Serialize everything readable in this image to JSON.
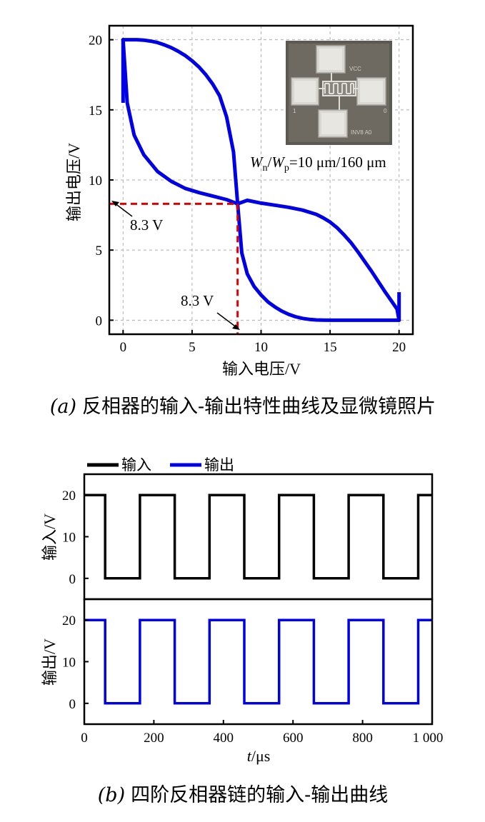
{
  "chart_data": [
    {
      "panel": "a",
      "type": "line",
      "caption_label": "(a)",
      "caption": "反相器的输入-输出特性曲线及显微镜照片",
      "xlabel": "输入电压/V",
      "ylabel": "输出电压/V",
      "xlim": [
        -1,
        21
      ],
      "ylim": [
        -1,
        21
      ],
      "xticks": [
        0,
        5,
        10,
        15,
        20
      ],
      "yticks": [
        0,
        5,
        10,
        15,
        20
      ],
      "grid": true,
      "series": [
        {
          "color": "#0000e6",
          "x": [
            0,
            0.5,
            1,
            1.5,
            2,
            2.5,
            3,
            3.5,
            4,
            4.5,
            5,
            5.5,
            6,
            6.5,
            7,
            7.5,
            8,
            8.3,
            8.6,
            9,
            9.5,
            10,
            10.5,
            11,
            11.5,
            12,
            12.5,
            13,
            13.5,
            14,
            14.5,
            15,
            15.5,
            16,
            16.5,
            17,
            17.5,
            18,
            18.5,
            19,
            19.5,
            20
          ],
          "y": [
            20,
            20,
            20,
            19.97,
            19.9,
            19.8,
            19.63,
            19.43,
            19.17,
            18.87,
            18.5,
            18.05,
            17.5,
            16.83,
            16.0,
            14.5,
            12.0,
            8.3,
            4.8,
            3.3,
            2.4,
            1.8,
            1.3,
            0.95,
            0.65,
            0.42,
            0.25,
            0.13,
            0.06,
            0.02,
            0.01,
            0,
            0,
            0,
            0,
            0,
            0,
            0,
            0,
            0,
            0,
            0
          ]
        },
        {
          "color": "#0000e6",
          "x": [
            0,
            0.3,
            0.8,
            1.5,
            2.5,
            3.5,
            4.5,
            5.5,
            6.5,
            7.5,
            8.3,
            9,
            10,
            11,
            12,
            13,
            14,
            14.5,
            15,
            15.5,
            16,
            16.5,
            17,
            17.5,
            18,
            18.5,
            19,
            19.5,
            19.85,
            20
          ],
          "y": [
            20,
            15.5,
            13.2,
            11.8,
            10.6,
            9.9,
            9.4,
            9.1,
            8.85,
            8.6,
            8.3,
            8.55,
            8.35,
            8.2,
            8.05,
            7.85,
            7.55,
            7.3,
            7.0,
            6.6,
            6.1,
            5.55,
            4.9,
            4.2,
            3.5,
            2.75,
            2.0,
            1.3,
            0.8,
            0
          ]
        }
      ],
      "closing_edges": "x=0 from 15.5 to 20 and x=20 from 0 to 2",
      "reference_lines": {
        "color": "#dd0000",
        "x": 8.3,
        "y": 8.3
      },
      "annotations": [
        {
          "text": "8.3 V",
          "points_to": [
            -1,
            8.3
          ]
        },
        {
          "text": "8.3 V",
          "points_to": [
            8.3,
            -1
          ]
        }
      ],
      "inset": {
        "pad_labels": [
          "VCC",
          "1",
          "0",
          "INV8 A0"
        ],
        "ratio_text": {
          "Wn": "W",
          "n": "n",
          "slash": "/",
          "Wp": "W",
          "p": "p",
          "rest": "=10 μm/160 μm"
        }
      }
    },
    {
      "panel": "b",
      "type": "line",
      "caption_label": "(b)",
      "caption": "四阶反相器链的输入-输出曲线",
      "xlabel_italic": "t",
      "xlabel_rest": "/μs",
      "xlim": [
        0,
        1000
      ],
      "xticks": [
        0,
        200,
        400,
        600,
        800,
        1000
      ],
      "xtick_labels": [
        "0",
        "200",
        "400",
        "600",
        "800",
        "1 000"
      ],
      "legend": [
        {
          "name": "输入",
          "color": "#000000"
        },
        {
          "name": "输出",
          "color": "#0000e6"
        }
      ],
      "subplots": [
        {
          "ylabel": "输入/V",
          "ylim": [
            -5,
            25
          ],
          "yticks": [
            0,
            10,
            20
          ],
          "color": "#000000",
          "high": 20,
          "low": 0,
          "x": [
            0,
            60,
            60,
            160,
            160,
            260,
            260,
            360,
            360,
            460,
            460,
            560,
            560,
            660,
            660,
            760,
            760,
            860,
            860,
            960,
            960,
            1000
          ],
          "y": [
            20,
            20,
            0,
            0,
            20,
            20,
            0,
            0,
            20,
            20,
            0,
            0,
            20,
            20,
            0,
            0,
            20,
            20,
            0,
            0,
            20,
            20
          ]
        },
        {
          "ylabel": "输出/V",
          "ylim": [
            -5,
            25
          ],
          "yticks": [
            0,
            10,
            20
          ],
          "color": "#0000e6",
          "high": 20,
          "low": 0,
          "x": [
            0,
            60,
            60,
            160,
            160,
            260,
            260,
            360,
            360,
            460,
            460,
            560,
            560,
            660,
            660,
            760,
            760,
            860,
            860,
            960,
            960,
            1000
          ],
          "y": [
            20,
            20,
            0,
            0,
            20,
            20,
            0,
            0,
            20,
            20,
            0,
            0,
            20,
            20,
            0,
            0,
            20,
            20,
            0,
            0,
            20,
            20
          ]
        }
      ]
    }
  ]
}
